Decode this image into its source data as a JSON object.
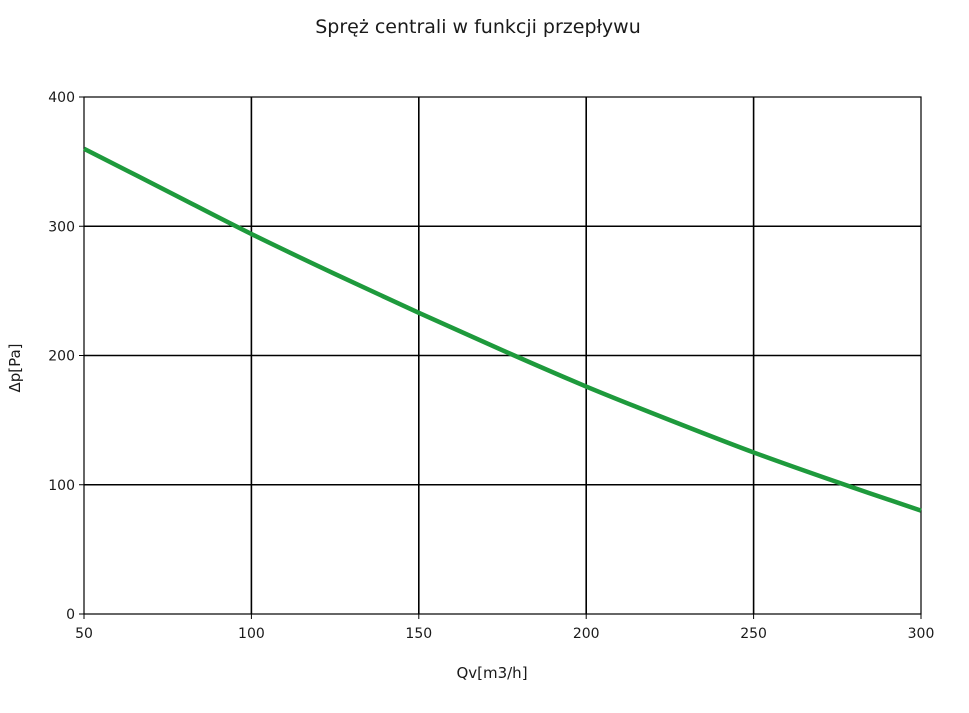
{
  "chart_data": {
    "type": "line",
    "title": "Spręż centrali w funkcji przepływu",
    "xlabel": "Qv[m3/h]",
    "ylabel": "Δp[Pa]",
    "xlim": [
      50,
      300
    ],
    "ylim": [
      0,
      400
    ],
    "x_ticks": [
      50,
      100,
      150,
      200,
      250,
      300
    ],
    "y_ticks": [
      0,
      100,
      200,
      300,
      400
    ],
    "grid": true,
    "series": [
      {
        "color": "#1e9a3c",
        "x": [
          50,
          75,
          100,
          125,
          150,
          175,
          200,
          225,
          250,
          275,
          300
        ],
        "y": [
          360,
          327,
          294,
          263,
          233,
          204,
          176,
          150,
          125,
          102,
          80
        ]
      }
    ]
  }
}
